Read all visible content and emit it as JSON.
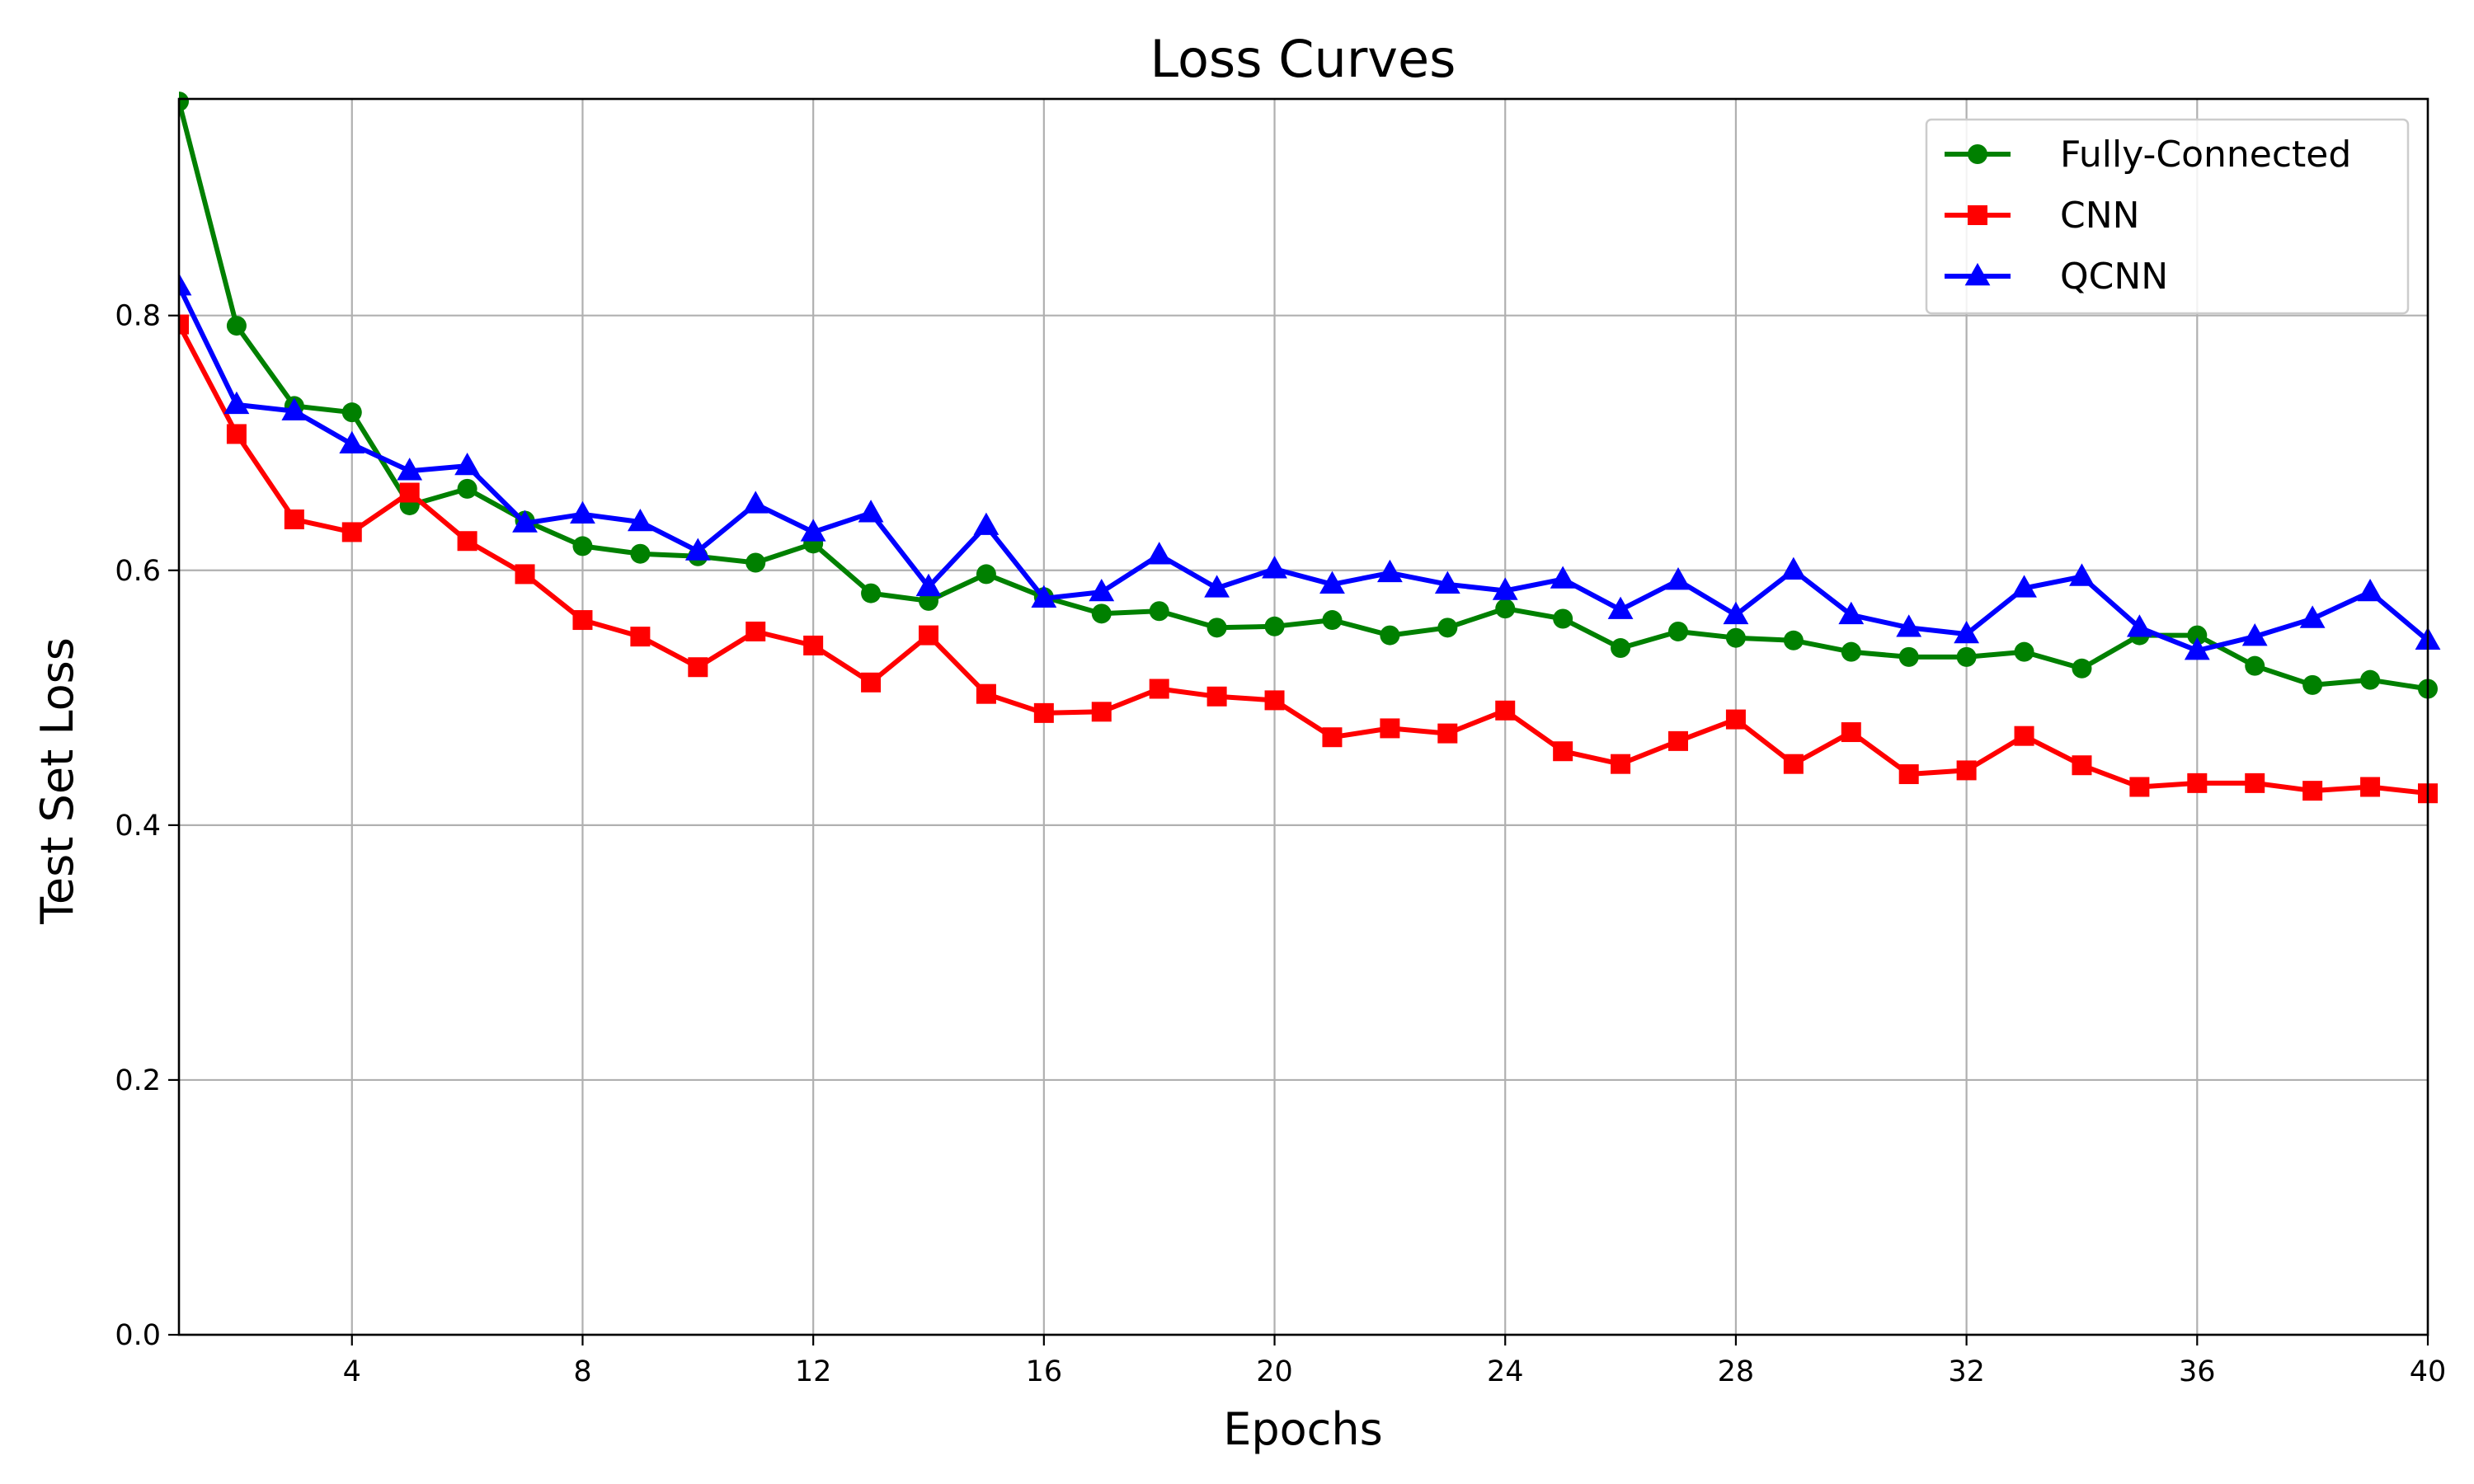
{
  "chart_data": {
    "type": "line",
    "title": "Loss Curves",
    "xlabel": "Epochs",
    "ylabel": "Test Set Loss",
    "xlim": [
      1,
      40
    ],
    "ylim": [
      0.0,
      0.97
    ],
    "xticks": [
      4,
      8,
      12,
      16,
      20,
      24,
      28,
      32,
      36,
      40
    ],
    "yticks": [
      0.0,
      0.2,
      0.4,
      0.6,
      0.8
    ],
    "xtick_labels": [
      "4",
      "8",
      "12",
      "16",
      "20",
      "24",
      "28",
      "32",
      "36",
      "40"
    ],
    "ytick_labels": [
      "0.0",
      "0.2",
      "0.4",
      "0.6",
      "0.8"
    ],
    "grid": true,
    "legend_position": "top-right",
    "x": [
      1,
      2,
      3,
      4,
      5,
      6,
      7,
      8,
      9,
      10,
      11,
      12,
      13,
      14,
      15,
      16,
      17,
      18,
      19,
      20,
      21,
      22,
      23,
      24,
      25,
      26,
      27,
      28,
      29,
      30,
      31,
      32,
      33,
      34,
      35,
      36,
      37,
      38,
      39,
      40
    ],
    "series": [
      {
        "name": "Fully-Connected",
        "color": "#008000",
        "marker": "circle",
        "values": [
          0.968,
          0.792,
          0.729,
          0.724,
          0.651,
          0.664,
          0.639,
          0.619,
          0.613,
          0.611,
          0.606,
          0.621,
          0.582,
          0.576,
          0.597,
          0.579,
          0.566,
          0.568,
          0.555,
          0.556,
          0.561,
          0.549,
          0.555,
          0.57,
          0.562,
          0.539,
          0.552,
          0.547,
          0.545,
          0.536,
          0.532,
          0.532,
          0.536,
          0.523,
          0.549,
          0.549,
          0.525,
          0.51,
          0.514,
          0.507
        ]
      },
      {
        "name": "CNN",
        "color": "#ff0000",
        "marker": "square",
        "values": [
          0.793,
          0.707,
          0.64,
          0.63,
          0.661,
          0.623,
          0.597,
          0.561,
          0.548,
          0.524,
          0.552,
          0.541,
          0.512,
          0.549,
          0.503,
          0.488,
          0.489,
          0.507,
          0.501,
          0.498,
          0.469,
          0.476,
          0.472,
          0.49,
          0.458,
          0.448,
          0.466,
          0.483,
          0.448,
          0.473,
          0.44,
          0.443,
          0.47,
          0.447,
          0.43,
          0.433,
          0.433,
          0.427,
          0.43,
          0.425
        ]
      },
      {
        "name": "QCNN",
        "color": "#0000ff",
        "marker": "triangle",
        "values": [
          0.823,
          0.73,
          0.725,
          0.699,
          0.678,
          0.682,
          0.637,
          0.644,
          0.638,
          0.615,
          0.652,
          0.63,
          0.645,
          0.587,
          0.635,
          0.578,
          0.583,
          0.612,
          0.586,
          0.601,
          0.589,
          0.598,
          0.589,
          0.584,
          0.593,
          0.569,
          0.592,
          0.565,
          0.6,
          0.565,
          0.555,
          0.55,
          0.586,
          0.595,
          0.555,
          0.537,
          0.548,
          0.562,
          0.583,
          0.545
        ]
      }
    ]
  }
}
